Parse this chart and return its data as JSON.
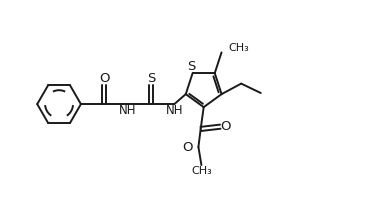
{
  "background": "#ffffff",
  "line_color": "#1a1a1a",
  "line_width": 1.4,
  "font_size": 8.5,
  "figsize": [
    3.78,
    2.12
  ],
  "dpi": 100,
  "xlim": [
    0,
    10
  ],
  "ylim": [
    0,
    5.6
  ]
}
